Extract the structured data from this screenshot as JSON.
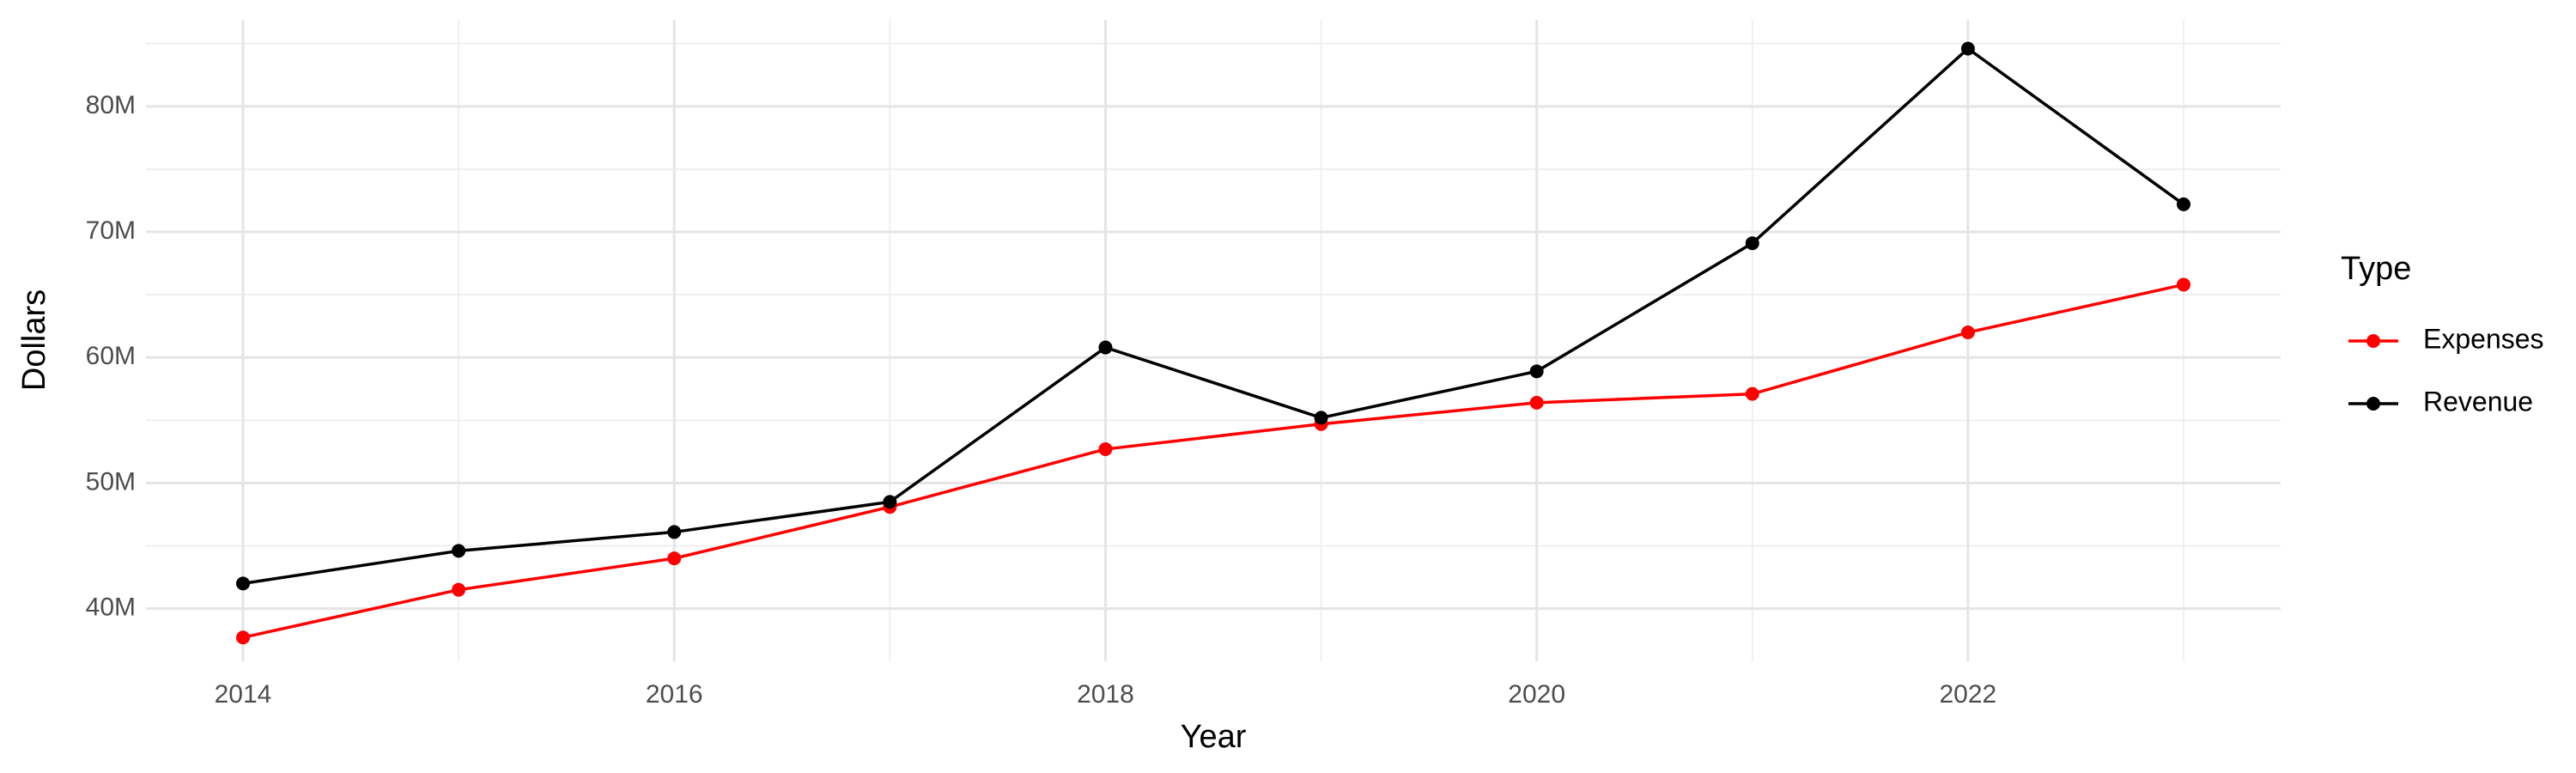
{
  "chart_data": {
    "type": "line",
    "x_label": "Year",
    "y_label": "Dollars",
    "x": [
      2014,
      2015,
      2016,
      2017,
      2018,
      2019,
      2020,
      2021,
      2022,
      2023
    ],
    "series": [
      {
        "name": "Expenses",
        "color": "#ff0000",
        "values": [
          37700000,
          41500000,
          44000000,
          48100000,
          52700000,
          54700000,
          56400000,
          57100000,
          62000000,
          65800000
        ]
      },
      {
        "name": "Revenue",
        "color": "#000000",
        "values": [
          42000000,
          44600000,
          46100000,
          48500000,
          60800000,
          55200000,
          58900000,
          69100000,
          84600000,
          72200000
        ]
      }
    ],
    "xlim": [
      2013.55,
      2023.45
    ],
    "xticks": [
      2014,
      2016,
      2018,
      2020,
      2022
    ],
    "ylim": [
      35800000,
      86900000
    ],
    "yticks": [
      {
        "value": 40000000,
        "label": "40M"
      },
      {
        "value": 50000000,
        "label": "50M"
      },
      {
        "value": 60000000,
        "label": "60M"
      },
      {
        "value": 70000000,
        "label": "70M"
      },
      {
        "value": 80000000,
        "label": "80M"
      }
    ],
    "grid": true,
    "legend_title": "Type",
    "legend_position": "right"
  }
}
